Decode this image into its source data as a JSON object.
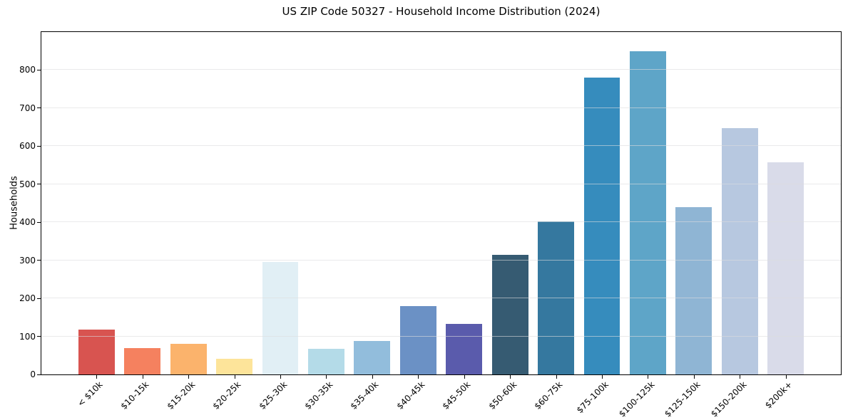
{
  "chart_data": {
    "type": "bar",
    "title": "US ZIP Code 50327 - Household Income Distribution (2024)",
    "xlabel": "",
    "ylabel": "Households",
    "categories": [
      "< $10k",
      "$10-15k",
      "$15-20k",
      "$20-25k",
      "$25-30k",
      "$30-35k",
      "$35-40k",
      "$40-45k",
      "$45-50k",
      "$50-60k",
      "$60-75k",
      "$75-100k",
      "$100-125k",
      "$125-150k",
      "$150-200k",
      "$200k+"
    ],
    "values": [
      117,
      70,
      80,
      42,
      295,
      68,
      88,
      180,
      132,
      315,
      402,
      780,
      850,
      440,
      648,
      557
    ],
    "bar_colors": [
      "#d85450",
      "#f5815f",
      "#fbb36c",
      "#fde49a",
      "#e1eff5",
      "#b4dbe8",
      "#92bddc",
      "#6b91c5",
      "#5a5bac",
      "#365b72",
      "#35789f",
      "#368cbd",
      "#5ea5c8",
      "#8fb5d4",
      "#b7c8e0",
      "#d9dbe9"
    ],
    "ylim": [
      0,
      900
    ],
    "yticks": [
      0,
      100,
      200,
      300,
      400,
      500,
      600,
      700,
      800
    ],
    "grid": "horizontal",
    "legend_position": "none"
  },
  "style_colors": {
    "background": "#ffffff",
    "spine": "#000000",
    "gridline": "#e8e8e8",
    "text": "#000000"
  }
}
